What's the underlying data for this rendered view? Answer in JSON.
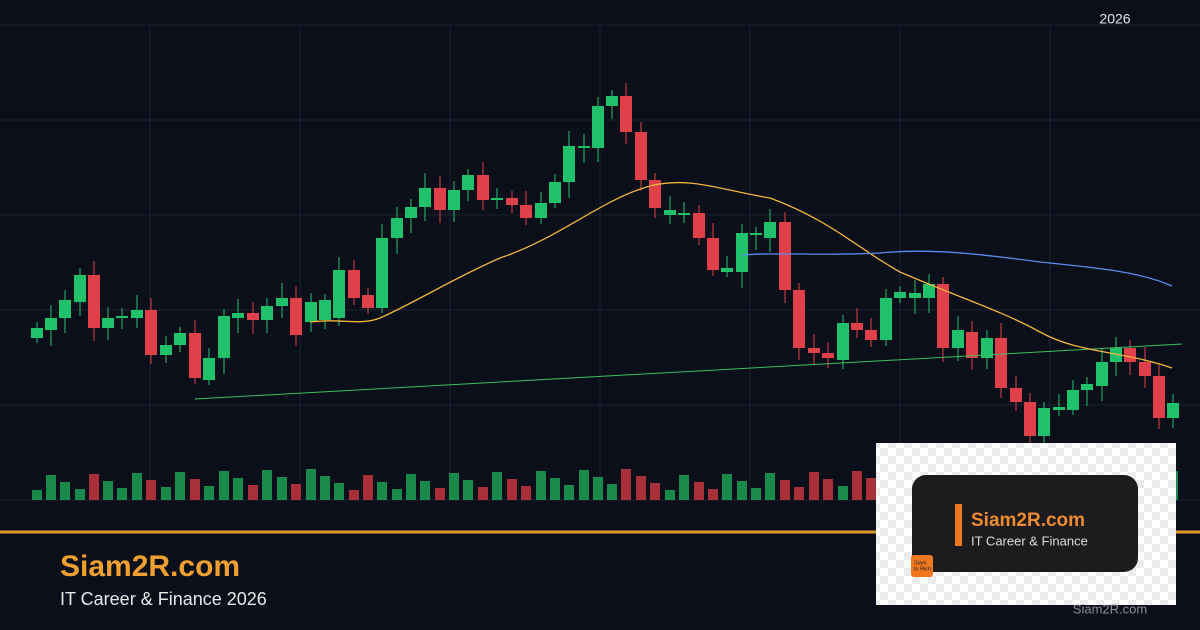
{
  "header": {
    "year": "2026"
  },
  "brand": {
    "title": "Siam2R.com",
    "subtitle": "IT Career & Finance 2026"
  },
  "logo": {
    "title": "Siam2R.com",
    "subtitle": "IT Career & Finance",
    "badge_line1": "Siam",
    "badge_line2": "to Rich"
  },
  "footer": {
    "site": "Siam2R.com"
  }
}
